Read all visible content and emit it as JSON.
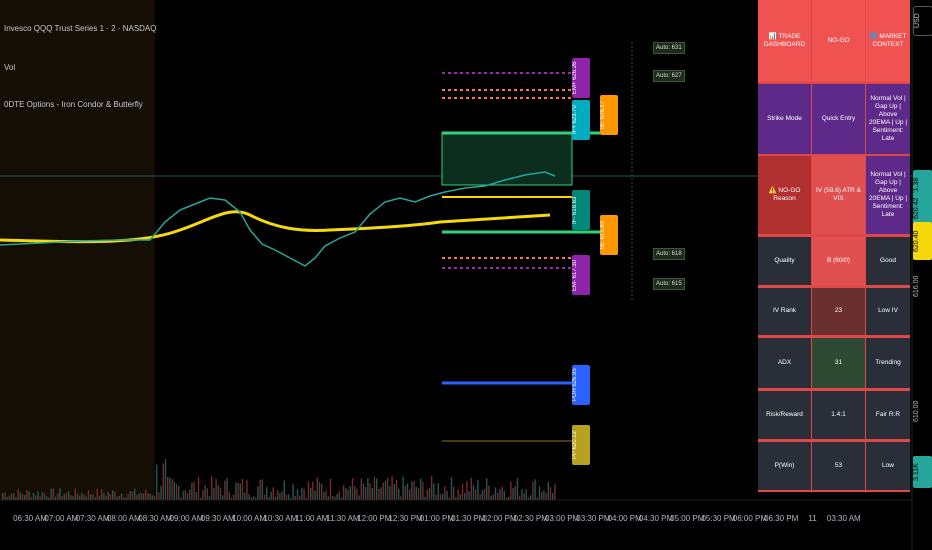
{
  "header": {
    "symbol": "Invesco QQQ Trust Series 1 · 2 · NASDAQ",
    "indicators": [
      "Vol",
      "0DTE Options - Iron Condor & Butterfly"
    ]
  },
  "price_axis": {
    "currency": "USD",
    "labels": [
      "621.38",
      "620.42",
      "620.40",
      "616.00",
      "610.00",
      "3.11K"
    ]
  },
  "time_axis": [
    "06:30 AM",
    "07:00 AM",
    "07:30 AM",
    "08:00 AM",
    "08:30 AM",
    "09:00 AM",
    "09:30 AM",
    "10:00 AM",
    "10:30 AM",
    "11:00 AM",
    "11:30 AM",
    "12:00 PM",
    "12:30 PM",
    "01:00 PM",
    "01:30 PM",
    "02:00 PM",
    "02:30 PM",
    "03:00 PM",
    "03:30 PM",
    "04:00 PM",
    "04:30 PM",
    "05:00 PM",
    "05:30 PM",
    "06:00 PM",
    "06:30 PM",
    "11",
    "03:30 AM"
  ],
  "level_labels": [
    "EM+ 626.26",
    "IF+ 623.70",
    "BE 626.17",
    "IF- 618.63",
    "BE 615.83",
    "EM- 617.30",
    "PDH 626.95",
    "PP 620.12"
  ],
  "auto_labels": [
    "Auto: 631",
    "Auto: 627",
    "Auto: 618",
    "Auto: 615"
  ],
  "dashboard": {
    "header": [
      "📊 TRADE DASHBOARD",
      "NO-GO",
      "🌐 MARKET CONTEXT"
    ],
    "rows": [
      [
        "Strike Mode",
        "Quick Entry",
        "Normal Vol | Gap Up | Above 20EMA | Up | Sentiment: Late"
      ],
      [
        "⚠️ NO-GO Reason",
        "IV (59.6) ATR & VIX",
        "Normal Vol | Gap Up | Above 20EMA | Up | Sentiment: Late"
      ],
      [
        "Quality",
        "B (60/0)",
        "Good"
      ],
      [
        "IV Rank",
        "23",
        "Low IV"
      ],
      [
        "ADX",
        "31",
        "Trending"
      ],
      [
        "Risk/Reward",
        "1.4:1",
        "Fair R:R"
      ],
      [
        "P(Win)",
        "53",
        "Low"
      ]
    ]
  }
}
